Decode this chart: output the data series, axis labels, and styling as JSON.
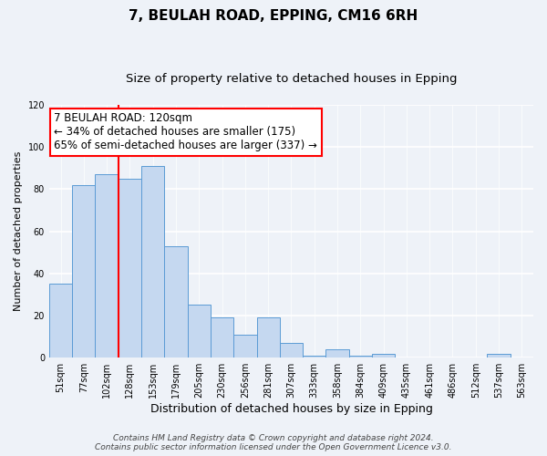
{
  "title": "7, BEULAH ROAD, EPPING, CM16 6RH",
  "subtitle": "Size of property relative to detached houses in Epping",
  "xlabel": "Distribution of detached houses by size in Epping",
  "ylabel": "Number of detached properties",
  "bar_labels": [
    "51sqm",
    "77sqm",
    "102sqm",
    "128sqm",
    "153sqm",
    "179sqm",
    "205sqm",
    "230sqm",
    "256sqm",
    "281sqm",
    "307sqm",
    "333sqm",
    "358sqm",
    "384sqm",
    "409sqm",
    "435sqm",
    "461sqm",
    "486sqm",
    "512sqm",
    "537sqm",
    "563sqm"
  ],
  "bar_heights": [
    35,
    82,
    87,
    85,
    91,
    53,
    25,
    19,
    11,
    19,
    7,
    1,
    4,
    1,
    2,
    0,
    0,
    0,
    0,
    2,
    0
  ],
  "bar_color": "#c5d8f0",
  "bar_edge_color": "#5b9bd5",
  "vline_x": 2.5,
  "vline_color": "red",
  "annotation_text": "7 BEULAH ROAD: 120sqm\n← 34% of detached houses are smaller (175)\n65% of semi-detached houses are larger (337) →",
  "annotation_box_color": "white",
  "annotation_box_edgecolor": "red",
  "ylim": [
    0,
    120
  ],
  "yticks": [
    0,
    20,
    40,
    60,
    80,
    100,
    120
  ],
  "footer_line1": "Contains HM Land Registry data © Crown copyright and database right 2024.",
  "footer_line2": "Contains public sector information licensed under the Open Government Licence v3.0.",
  "background_color": "#eef2f8",
  "title_fontsize": 11,
  "subtitle_fontsize": 9.5,
  "xlabel_fontsize": 9,
  "ylabel_fontsize": 8,
  "tick_fontsize": 7,
  "annotation_fontsize": 8.5,
  "footer_fontsize": 6.5
}
